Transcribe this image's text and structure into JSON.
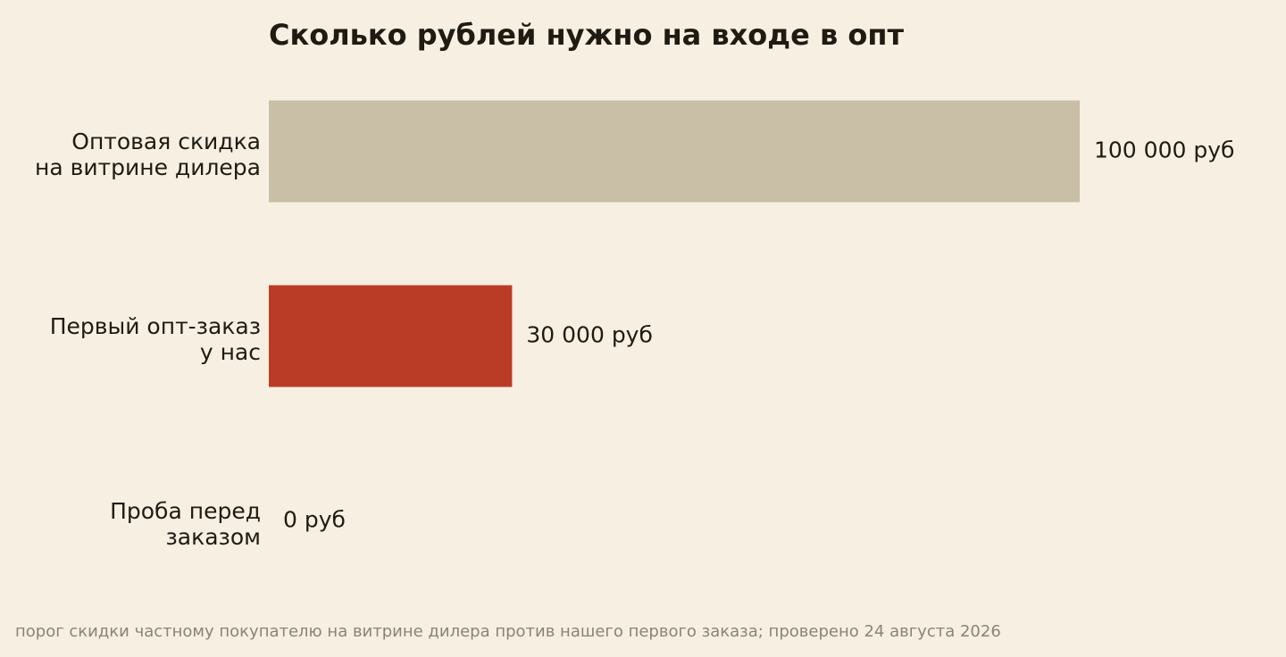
{
  "chart_data": {
    "type": "bar",
    "orientation": "horizontal",
    "title": "Сколько рублей нужно на входе в опт",
    "categories": [
      "Оптовая скидка\nна витрине дилера",
      "Первый опт-заказ\nу нас",
      "Проба перед\nзаказом"
    ],
    "values": [
      100000,
      30000,
      0
    ],
    "value_labels": [
      "100 000 руб",
      "30 000 руб",
      "0 руб"
    ],
    "colors": [
      "#c9bfa7",
      "#bb3c26",
      "#bb3c26"
    ],
    "xlim": [
      0,
      100000
    ],
    "note": "порог скидки частному покупателю на витрине дилера против нашего первого заказа; проверено 24 августа 2026"
  }
}
